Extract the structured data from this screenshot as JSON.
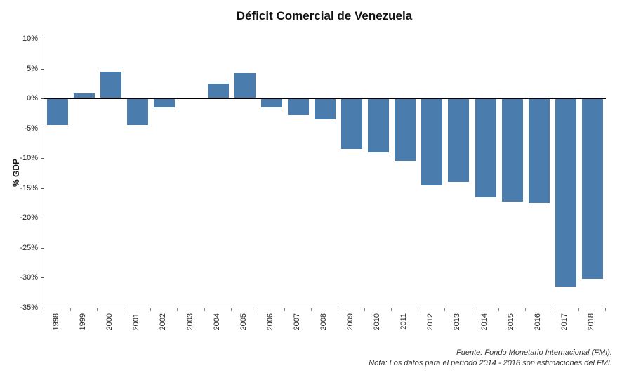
{
  "title": "Déficit Comercial de Venezuela",
  "y_axis_title": "% GDP",
  "footer": {
    "source": "Fuente: Fondo Monetario Internacional (FMI).",
    "note": "Nota: Los datos para el período 2014 - 2018 son estimaciones del FMI."
  },
  "chart_data": {
    "type": "bar",
    "title": "Déficit Comercial de Venezuela",
    "xlabel": "",
    "ylabel": "% GDP",
    "categories": [
      "1998",
      "1999",
      "2000",
      "2001",
      "2002",
      "2003",
      "2004",
      "2005",
      "2006",
      "2007",
      "2008",
      "2009",
      "2010",
      "2011",
      "2012",
      "2013",
      "2014",
      "2015",
      "2016",
      "2017",
      "2018"
    ],
    "values": [
      -4.5,
      0.8,
      4.5,
      -4.5,
      -1.5,
      0.1,
      2.5,
      4.2,
      -1.5,
      -2.8,
      -3.5,
      -8.5,
      -9,
      -10.5,
      -14.5,
      -14,
      -16.5,
      -17.3,
      -17.5,
      -31.5,
      -30.2
    ],
    "ylim": [
      -35,
      10
    ],
    "ytick_step": 5,
    "ytick_suffix": "%",
    "grid": false,
    "legend": "none",
    "bar_color": "#4a7dad",
    "axis_color": "#595959",
    "zero_line_color": "#000000"
  }
}
